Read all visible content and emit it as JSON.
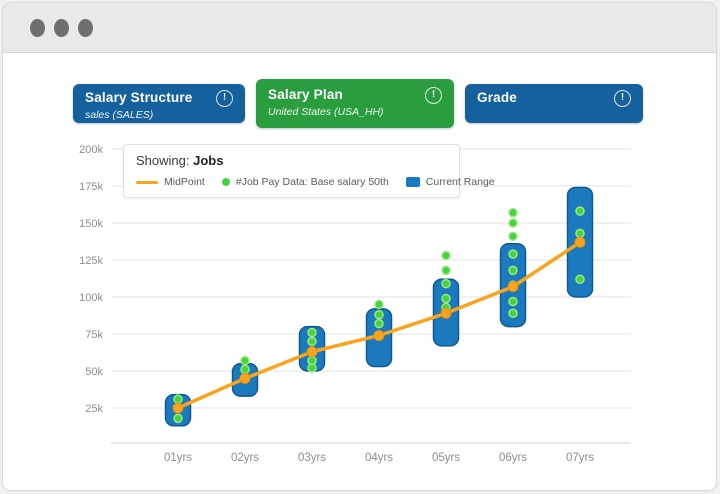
{
  "window": {
    "chrome_dots": 3
  },
  "tabs": [
    {
      "title": "Salary Structure",
      "subtitle": "sales (SALES)",
      "color": "#14619e",
      "active": false,
      "info_glyph": "!"
    },
    {
      "title": "Salary Plan",
      "subtitle": "United States (USA_HH)",
      "color": "#2a9d3f",
      "active": true,
      "info_glyph": "!"
    },
    {
      "title": "Grade",
      "subtitle": "",
      "color": "#14619e",
      "active": false,
      "info_glyph": "!"
    }
  ],
  "legend": {
    "showing_label": "Showing:",
    "showing_value": "Jobs"
  },
  "colors": {
    "bar_fill": "#1b79bd",
    "bar_border": "#0d5a94",
    "line_orange": "#f8a41d",
    "marker_orange_border": "#e79010",
    "dot_green": "#45d33f",
    "dot_green_ring": "#9ce97e",
    "gridline": "#e3e3e3",
    "axis_line": "#cfcfcf",
    "axis_text": "#8d8d8d"
  },
  "chart_data": {
    "type": "bar",
    "subtype": "range-bar with line and scatter overlay",
    "title": "Showing: Jobs",
    "xlabel": "",
    "ylabel": "",
    "grid": "horizontal",
    "legend_position": "top-left overlay",
    "ylim": [
      0,
      212
    ],
    "yticks": [
      {
        "v": 25,
        "label": "25k"
      },
      {
        "v": 50,
        "label": "50k"
      },
      {
        "v": 75,
        "label": "75k"
      },
      {
        "v": 100,
        "label": "100k"
      },
      {
        "v": 125,
        "label": "125k"
      },
      {
        "v": 150,
        "label": "150k"
      },
      {
        "v": 175,
        "label": "175k"
      },
      {
        "v": 200,
        "label": "200k"
      }
    ],
    "categories": [
      "01yrs",
      "02yrs",
      "03yrs",
      "04yrs",
      "05yrs",
      "06yrs",
      "07yrs"
    ],
    "series": [
      {
        "name": "MidPoint",
        "type": "line",
        "color": "#f8a41d",
        "values": [
          25,
          45,
          63,
          74,
          89,
          107,
          137
        ]
      },
      {
        "name": "#Job Pay Data: Base salary 50th",
        "type": "scatter",
        "color": "#45d33f",
        "values": [
          [
            31,
            25,
            18
          ],
          [
            57,
            51,
            45
          ],
          [
            76,
            70,
            63,
            57,
            52
          ],
          [
            95,
            88,
            82,
            74
          ],
          [
            128,
            118,
            109,
            99,
            93
          ],
          [
            157,
            150,
            141,
            129,
            118,
            108,
            97,
            89
          ],
          [
            158,
            143,
            112
          ]
        ]
      },
      {
        "name": "Current Range",
        "type": "range-bar",
        "color": "#1b79bd",
        "low": [
          13,
          33,
          50,
          53,
          67,
          80,
          100
        ],
        "high": [
          34,
          55,
          80,
          92,
          112,
          136,
          174
        ]
      }
    ],
    "unit": "k (thousands, salary)"
  }
}
